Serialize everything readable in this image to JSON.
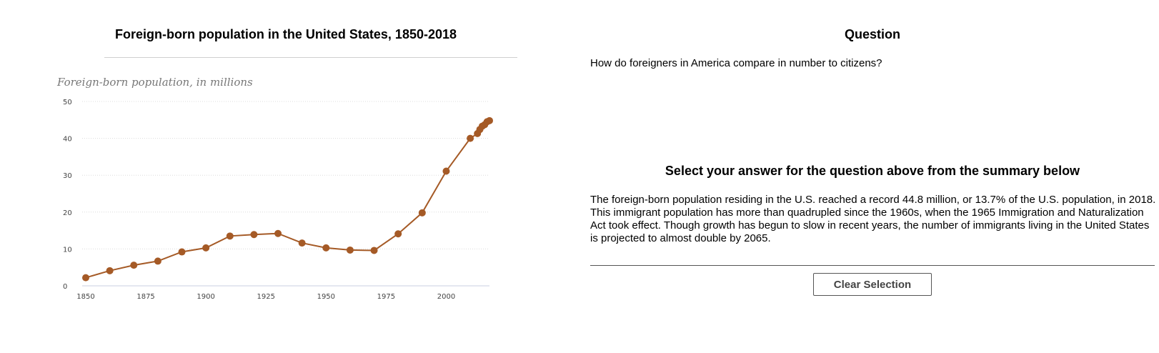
{
  "chart_panel": {
    "title": "Foreign-born population in the United States, 1850-2018"
  },
  "question_panel": {
    "heading": "Question",
    "question": "How do foreigners in America compare in number to citizens?",
    "select_heading": "Select your answer for the question above from the summary below",
    "summary": "The foreign-born population residing in the U.S. reached a record 44.8 million, or 13.7% of the U.S. population, in 2018. This immigrant population has more than quadrupled since the 1960s, when the 1965 Immigration and Naturalization Act took effect. Though growth has begun to slow in recent years, the number of immigrants living in the United States is projected to almost double by 2065.",
    "clear_button": "Clear Selection"
  },
  "chart_data": {
    "type": "line",
    "title": "Foreign-born population in the United States, 1850-2018",
    "ylabel": "Foreign-born population, in millions",
    "xlabel": "",
    "xlim": [
      1850,
      2018
    ],
    "ylim": [
      0,
      50
    ],
    "x_ticks": [
      1850,
      1875,
      1900,
      1925,
      1950,
      1975,
      2000
    ],
    "y_ticks": [
      0,
      10,
      20,
      30,
      40,
      50
    ],
    "grid": "horizontal dotted",
    "line_color": "#a55a26",
    "x": [
      1850,
      1860,
      1870,
      1880,
      1890,
      1900,
      1910,
      1920,
      1930,
      1940,
      1950,
      1960,
      1970,
      1980,
      1990,
      2000,
      2010,
      2013,
      2014,
      2015,
      2016,
      2017,
      2018
    ],
    "y": [
      2.2,
      4.1,
      5.6,
      6.7,
      9.2,
      10.3,
      13.5,
      13.9,
      14.2,
      11.6,
      10.3,
      9.7,
      9.6,
      14.1,
      19.8,
      31.1,
      40.0,
      41.3,
      42.4,
      43.3,
      43.7,
      44.5,
      44.8
    ]
  }
}
